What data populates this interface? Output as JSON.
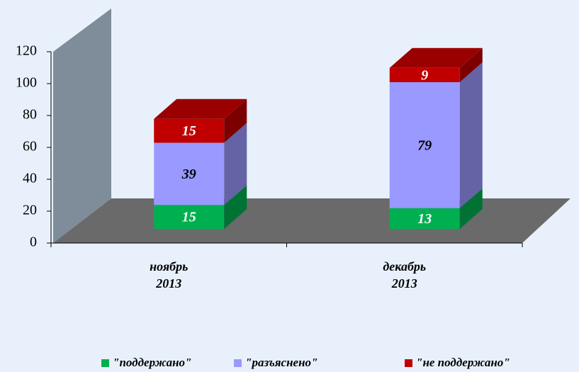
{
  "chart_data": {
    "type": "bar3d_stacked",
    "categories": [
      "ноябрь 2013",
      "декабрь 2013"
    ],
    "series": [
      {
        "name": "\"поддержано\"",
        "color": "#00b050",
        "values": [
          15,
          13
        ]
      },
      {
        "name": "\"разъяснено\"",
        "color": "#9999ff",
        "values": [
          39,
          79
        ]
      },
      {
        "name": "\"не поддержано\"",
        "color": "#c00000",
        "values": [
          15,
          9
        ]
      }
    ],
    "ylim": [
      0,
      120
    ],
    "yticks": [
      0,
      20,
      40,
      60,
      80,
      100,
      120
    ]
  }
}
